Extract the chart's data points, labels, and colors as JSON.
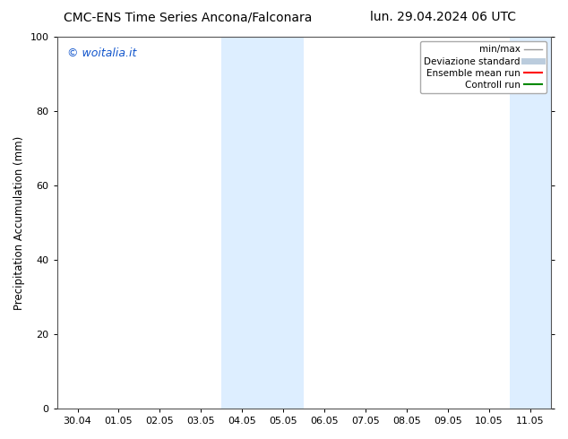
{
  "title_left": "CMC-ENS Time Series Ancona/Falconara",
  "title_right": "lun. 29.04.2024 06 UTC",
  "ylabel": "Precipitation Accumulation (mm)",
  "watermark": "© woitalia.it",
  "watermark_color": "#1155cc",
  "ylim": [
    0,
    100
  ],
  "yticks": [
    0,
    20,
    40,
    60,
    80,
    100
  ],
  "x_tick_labels": [
    "30.04",
    "01.05",
    "02.05",
    "03.05",
    "04.05",
    "05.05",
    "06.05",
    "07.05",
    "08.05",
    "09.05",
    "10.05",
    "11.05"
  ],
  "x_tick_positions": [
    0,
    1,
    2,
    3,
    4,
    5,
    6,
    7,
    8,
    9,
    10,
    11
  ],
  "xlim": [
    -0.5,
    11.5
  ],
  "shaded_regions": [
    {
      "xmin": 3.5,
      "xmax": 4.5,
      "color": "#ddeeff"
    },
    {
      "xmin": 4.5,
      "xmax": 5.5,
      "color": "#ddeeff"
    },
    {
      "xmin": 10.5,
      "xmax": 11.5,
      "color": "#ddeeff"
    }
  ],
  "legend_entries": [
    {
      "label": "min/max",
      "color": "#999999",
      "lw": 1.0
    },
    {
      "label": "Deviazione standard",
      "color": "#bbccdd",
      "lw": 5.0
    },
    {
      "label": "Ensemble mean run",
      "color": "#ff0000",
      "lw": 1.5
    },
    {
      "label": "Controll run",
      "color": "#008800",
      "lw": 1.5
    }
  ],
  "background_color": "#ffffff",
  "plot_bg_color": "#ffffff",
  "font_size_title": 10,
  "font_size_axis": 8.5,
  "font_size_ticks": 8,
  "font_size_legend": 7.5,
  "font_size_watermark": 9
}
